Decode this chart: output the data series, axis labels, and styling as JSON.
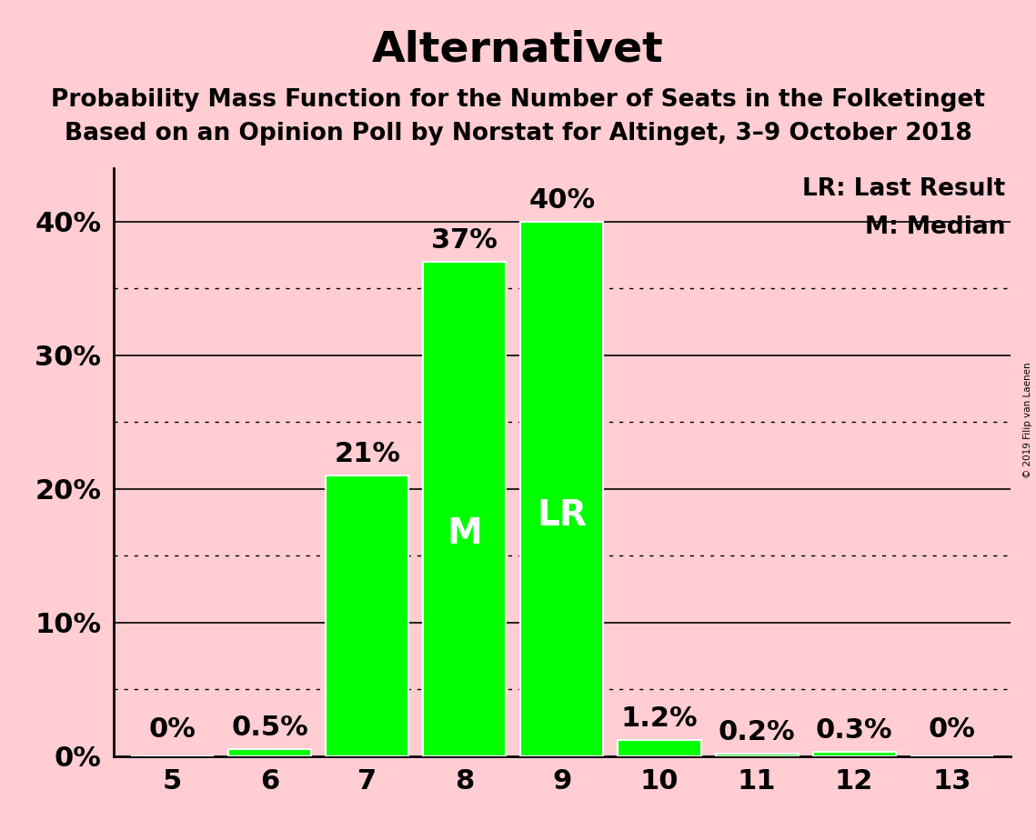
{
  "title": "Alternativet",
  "subtitle1": "Probability Mass Function for the Number of Seats in the Folketinget",
  "subtitle2": "Based on an Opinion Poll by Norstat for Altinget, 3–9 October 2018",
  "copyright": "© 2019 Filip van Laenen",
  "legend1": "LR: Last Result",
  "legend2": "M: Median",
  "categories": [
    5,
    6,
    7,
    8,
    9,
    10,
    11,
    12,
    13
  ],
  "values": [
    0.0,
    0.5,
    21.0,
    37.0,
    40.0,
    1.2,
    0.2,
    0.3,
    0.0
  ],
  "labels": [
    "0%",
    "0.5%",
    "21%",
    "37%",
    "40%",
    "1.2%",
    "0.2%",
    "0.3%",
    "0%"
  ],
  "bar_color": "#00ff00",
  "bar_edge_color": "white",
  "background_color": "#ffcdd2",
  "median_seat": 8,
  "last_result_seat": 9,
  "ylim": [
    0,
    44
  ],
  "yticks": [
    0,
    10,
    20,
    30,
    40
  ],
  "ytick_labels": [
    "0%",
    "10%",
    "20%",
    "30%",
    "40%"
  ],
  "grid_solid_levels": [
    10,
    20,
    30,
    40
  ],
  "grid_dotted_levels": [
    5,
    15,
    25,
    35
  ],
  "title_fontsize": 34,
  "subtitle_fontsize": 19,
  "tick_fontsize": 22,
  "annotation_fontsize": 22,
  "legend_fontsize": 19,
  "median_label_fontsize": 28,
  "lr_label_fontsize": 28
}
